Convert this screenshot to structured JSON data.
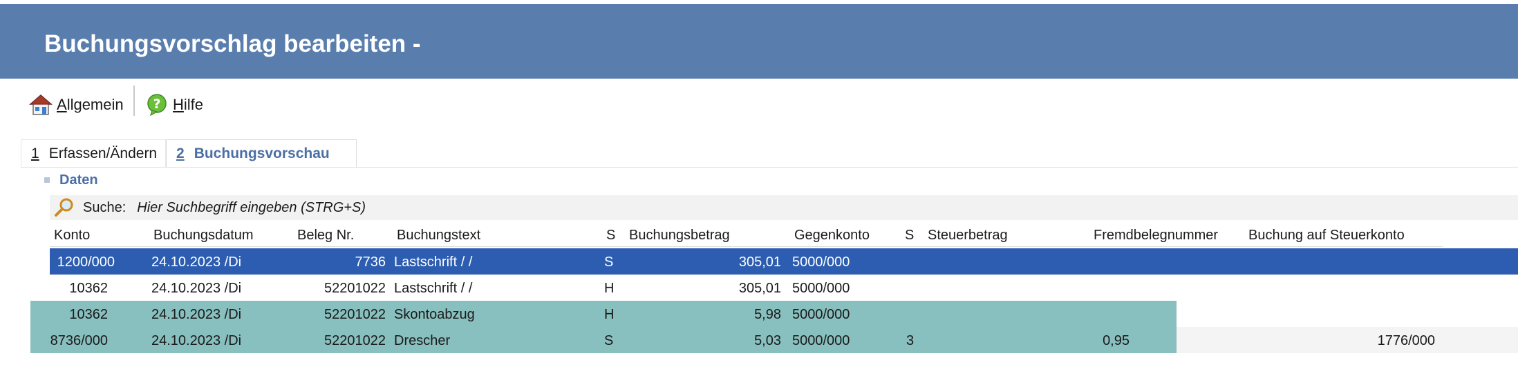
{
  "window": {
    "title": "Buchungsvorschlag bearbeiten -"
  },
  "toolbar": {
    "general": {
      "mnemonic": "A",
      "rest": "llgemein"
    },
    "help": {
      "mnemonic": "H",
      "rest": "ilfe"
    }
  },
  "tabs": [
    {
      "num": "1",
      "label": "Erfassen/Ändern"
    },
    {
      "num": "2",
      "label": "Buchungsvorschau"
    }
  ],
  "section": {
    "label": "Daten"
  },
  "search": {
    "label": "Suche:",
    "placeholder": "Hier Suchbegriff eingeben (STRG+S)"
  },
  "columns": {
    "konto": "Konto",
    "datum": "Buchungsdatum",
    "beleg": "Beleg Nr.",
    "text": "Buchungstext",
    "s1": "S",
    "betrag": "Buchungsbetrag",
    "gegenkonto": "Gegenkonto",
    "s2": "S",
    "steuer": "Steuerbetrag",
    "fremd": "Fremdbelegnummer",
    "steuerkonto": "Buchung auf Steuerkonto"
  },
  "rows": [
    {
      "konto": "1200/000",
      "datum": "24.10.2023 /Di",
      "beleg": "7736",
      "text": "Lastschrift /  /",
      "s1": "S",
      "betrag": "305,01",
      "gegenkonto": "5000/000",
      "s2": "",
      "steuer": "",
      "fremd": "",
      "steuerkonto": ""
    },
    {
      "konto": "10362",
      "datum": "24.10.2023 /Di",
      "beleg": "52201022",
      "text": "Lastschrift /  /",
      "s1": "H",
      "betrag": "305,01",
      "gegenkonto": "5000/000",
      "s2": "",
      "steuer": "",
      "fremd": "",
      "steuerkonto": ""
    },
    {
      "konto": "10362",
      "datum": "24.10.2023 /Di",
      "beleg": "52201022",
      "text": "Skontoabzug",
      "s1": "H",
      "betrag": "5,98",
      "gegenkonto": "5000/000",
      "s2": "",
      "steuer": "",
      "fremd": "",
      "steuerkonto": ""
    },
    {
      "konto": "8736/000",
      "datum": "24.10.2023 /Di",
      "beleg": "52201022",
      "text": "Drescher",
      "s1": "S",
      "betrag": "5,03",
      "gegenkonto": "5000/000",
      "s2": "3",
      "steuer": "0,95",
      "fremd": "",
      "steuerkonto": "1776/000"
    }
  ],
  "colors": {
    "titlebar": "#597eae",
    "selected_row": "#2d5db0",
    "highlight_row": "#88bfbf",
    "accent_text": "#4a6fa5"
  }
}
